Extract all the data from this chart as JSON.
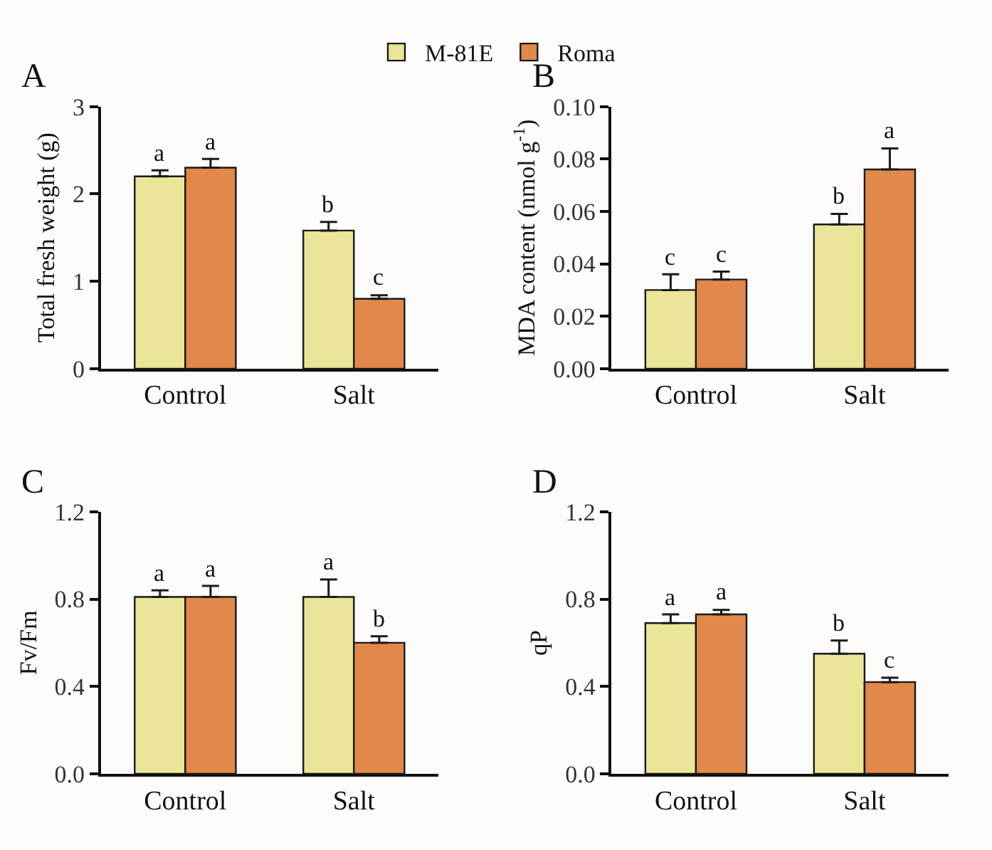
{
  "chart_data": [
    {
      "type": "bar",
      "title": "A",
      "ylabel": "Total fresh weight (g)",
      "categories": [
        "Control",
        "Salt"
      ],
      "ylim": [
        0,
        3
      ],
      "yticks": [
        0,
        1,
        2,
        3
      ],
      "legend": "top",
      "grid": false,
      "series": [
        {
          "name": "M-81E",
          "color": "#ebe59a",
          "values": [
            2.2,
            1.58
          ],
          "errors": [
            [
              2.2,
              2.27
            ],
            [
              1.58,
              1.68
            ]
          ]
        },
        {
          "name": "Roma",
          "color": "#e0894a",
          "values": [
            2.3,
            0.8
          ],
          "errors": [
            [
              2.3,
              2.4
            ],
            [
              0.8,
              0.84
            ]
          ]
        }
      ],
      "annotations": [
        {
          "text": "a",
          "x": "Control",
          "y": 2.2
        },
        {
          "text": "a",
          "x": "Control",
          "y": 2.3
        },
        {
          "text": "b",
          "x": "Salt",
          "y": 1.58
        },
        {
          "text": "c",
          "x": "Salt",
          "y": 0.8
        }
      ]
    },
    {
      "type": "bar",
      "title": "B",
      "ylabel": "MDA content (nmol g$^{-1}$)",
      "categories": [
        "Control",
        "Salt"
      ],
      "ylim": [
        0,
        0.1
      ],
      "yticks": [
        {
          "value": 0,
          "label": "0.00"
        },
        {
          "value": 0.02,
          "label": "0.02"
        },
        {
          "value": 0.04,
          "label": "0.04"
        },
        {
          "value": 0.06,
          "label": "0.06"
        },
        {
          "value": 0.08,
          "label": "0.08"
        },
        {
          "value": 0.1,
          "label": "0.10"
        }
      ],
      "legend": "top",
      "grid": false,
      "series": [
        {
          "name": "M-81E",
          "color": "#ebe59a",
          "values": [
            0.03,
            0.055
          ],
          "errors": [
            [
              0.03,
              0.036
            ],
            [
              0.055,
              0.059
            ]
          ]
        },
        {
          "name": "Roma",
          "color": "#e0894a",
          "values": [
            0.034,
            0.076
          ],
          "errors": [
            [
              0.034,
              0.037
            ],
            [
              0.076,
              0.084
            ]
          ]
        }
      ],
      "annotations": [
        {
          "text": "c",
          "x": "Control",
          "y": 0.03
        },
        {
          "text": "c",
          "x": "Control",
          "y": 0.034
        },
        {
          "text": "b",
          "x": "Salt",
          "y": 0.055
        },
        {
          "text": "a",
          "x": "Salt",
          "y": 0.076
        }
      ]
    },
    {
      "type": "bar",
      "title": "C",
      "ylabel": "Fv/Fm",
      "categories": [
        "Control",
        "Salt"
      ],
      "ylim": [
        0,
        1.2
      ],
      "yticks": [
        {
          "value": 0,
          "label": "0.0"
        },
        0.4,
        0.8,
        1.2
      ],
      "legend": "top",
      "grid": false,
      "series": [
        {
          "name": "M-81E",
          "color": "#ebe59a",
          "values": [
            0.81,
            0.81
          ],
          "errors": [
            [
              0.81,
              0.84
            ],
            [
              0.81,
              0.89
            ]
          ]
        },
        {
          "name": "Roma",
          "color": "#e0894a",
          "values": [
            0.81,
            0.6
          ],
          "errors": [
            [
              0.81,
              0.86
            ],
            [
              0.6,
              0.63
            ]
          ]
        }
      ],
      "annotations": [
        {
          "text": "a",
          "x": "Control",
          "y": 0.81
        },
        {
          "text": "a",
          "x": "Control",
          "y": 0.81
        },
        {
          "text": "a",
          "x": "Salt",
          "y": 0.81
        },
        {
          "text": "b",
          "x": "Salt",
          "y": 0.6
        }
      ]
    },
    {
      "type": "bar",
      "title": "D",
      "ylabel": "qP",
      "categories": [
        "Control",
        "Salt"
      ],
      "ylim": [
        0,
        1.2
      ],
      "yticks": [
        {
          "value": 0,
          "label": "0.0"
        },
        0.4,
        0.8,
        1.2
      ],
      "legend": "top",
      "grid": false,
      "series": [
        {
          "name": "M-81E",
          "color": "#ebe59a",
          "values": [
            0.69,
            0.55
          ],
          "errors": [
            [
              0.69,
              0.73
            ],
            [
              0.55,
              0.61
            ]
          ]
        },
        {
          "name": "Roma",
          "color": "#e0894a",
          "values": [
            0.73,
            0.42
          ],
          "errors": [
            [
              0.73,
              0.75
            ],
            [
              0.42,
              0.44
            ]
          ]
        }
      ],
      "annotations": [
        {
          "text": "a",
          "x": "Control",
          "y": 0.69
        },
        {
          "text": "a",
          "x": "Control",
          "y": 0.73
        },
        {
          "text": "b",
          "x": "Salt",
          "y": 0.55
        },
        {
          "text": "c",
          "x": "Salt",
          "y": 0.42
        }
      ]
    }
  ]
}
